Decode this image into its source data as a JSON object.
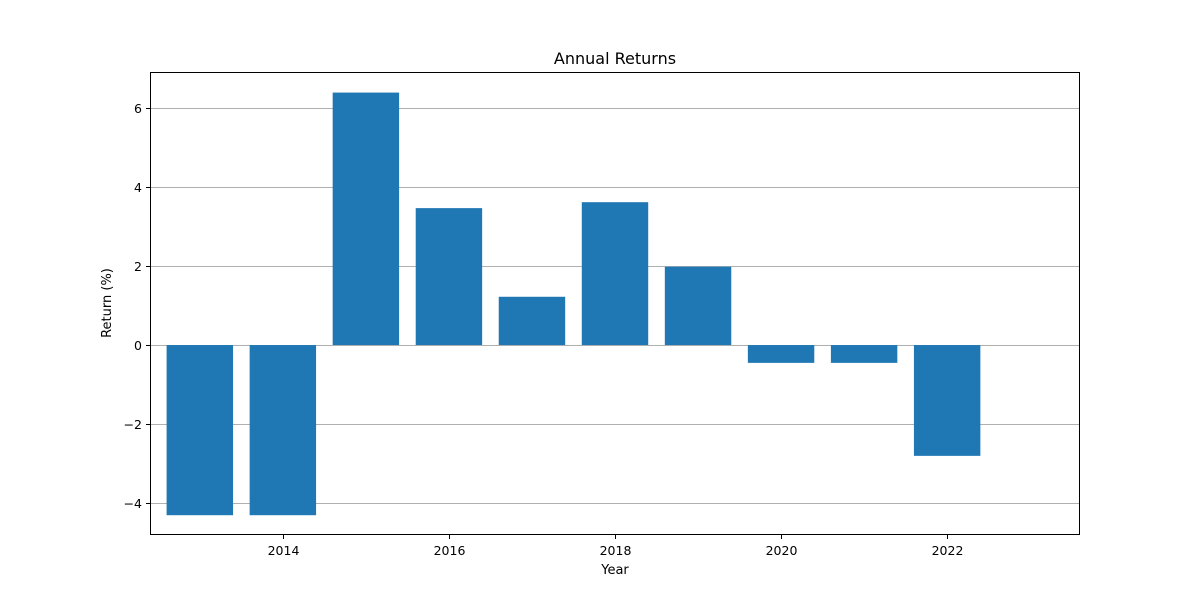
{
  "chart_data": {
    "type": "bar",
    "title": "Annual Returns",
    "xlabel": "Year",
    "ylabel": "Return (%)",
    "x": [
      2013,
      2014,
      2015,
      2016,
      2017,
      2018,
      2019,
      2020,
      2021,
      2022
    ],
    "values": [
      -4.3,
      -4.3,
      6.38,
      3.46,
      1.22,
      3.61,
      1.98,
      -0.45,
      -0.45,
      -2.8
    ],
    "xlim": [
      2012.4,
      2023.6
    ],
    "ylim": [
      -4.8,
      6.9
    ],
    "xticks": [
      2014,
      2016,
      2018,
      2020,
      2022
    ],
    "yticks": [
      -4,
      -2,
      0,
      2,
      4,
      6
    ],
    "ytick_labels": [
      "−4",
      "−2",
      "0",
      "2",
      "4",
      "6"
    ],
    "bar_color": "#1f77b4",
    "grid": "y-axis only",
    "legend": "none"
  }
}
